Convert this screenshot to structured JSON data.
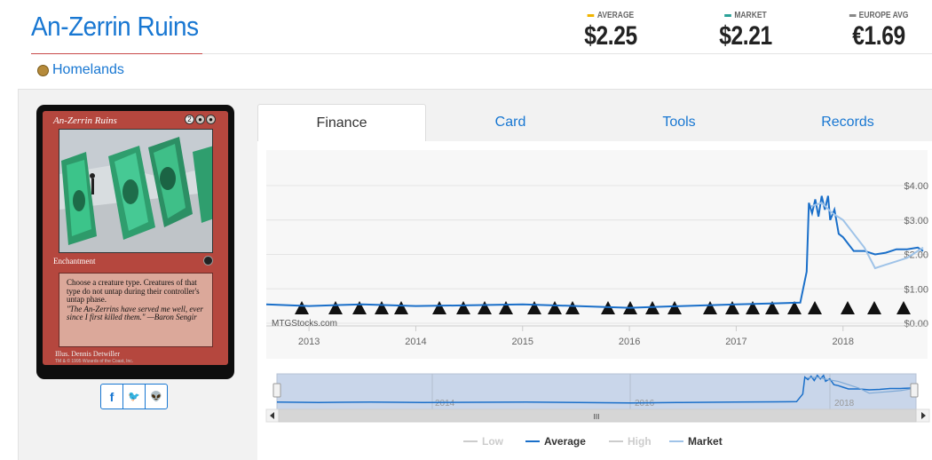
{
  "card": {
    "title": "An-Zerrin Ruins",
    "set_name": "Homelands",
    "name_on_card": "An-Zerrin Ruins",
    "mana_cost": [
      "2",
      "",
      ""
    ],
    "type_line": "Enchantment",
    "rules_text": "Choose a creature type. Creatures of that type do not untap during their controller's untap phase.",
    "flavor_text": "\"The An-Zerrins have served me well, ever since I first killed them.\" —Baron Sengir",
    "artist": "Illus. Dennis Detwiller",
    "copyright": "TM & © 1995 Wizards of the Coast, Inc."
  },
  "prices": [
    {
      "label": "AVERAGE",
      "value": "$2.25",
      "color": "#f0b400"
    },
    {
      "label": "MARKET",
      "value": "$2.21",
      "color": "#2aa198"
    },
    {
      "label": "EUROPE AVG",
      "value": "€1.69",
      "color": "#888888"
    }
  ],
  "share": [
    {
      "icon": "facebook-icon",
      "glyph": "f"
    },
    {
      "icon": "twitter-icon",
      "glyph": "🐦"
    },
    {
      "icon": "reddit-icon",
      "glyph": "👽"
    }
  ],
  "tabs": [
    {
      "label": "Finance",
      "active": true
    },
    {
      "label": "Card",
      "active": false
    },
    {
      "label": "Tools",
      "active": false
    },
    {
      "label": "Records",
      "active": false
    }
  ],
  "chart_data": {
    "type": "line",
    "watermark": "MTGStocks.com",
    "y_ticks": [
      "$0.00",
      "$1.00",
      "$2.00",
      "$3.00",
      "$4.00"
    ],
    "ylim": [
      0,
      4
    ],
    "x_ticks": [
      "2013",
      "2014",
      "2015",
      "2016",
      "2017",
      "2018"
    ],
    "xlim": [
      2012.6,
      2018.75
    ],
    "series": [
      {
        "name": "Average",
        "color": "#1a6fc9",
        "x": [
          2012.6,
          2013.0,
          2013.5,
          2014.0,
          2014.5,
          2015.0,
          2015.5,
          2016.0,
          2016.5,
          2017.0,
          2017.4,
          2017.6,
          2017.66,
          2017.68,
          2017.71,
          2017.74,
          2017.77,
          2017.8,
          2017.83,
          2017.86,
          2017.88,
          2017.92,
          2017.96,
          2018.0,
          2018.05,
          2018.1,
          2018.2,
          2018.3,
          2018.4,
          2018.5,
          2018.6,
          2018.7,
          2018.75
        ],
        "values": [
          0.55,
          0.5,
          0.55,
          0.5,
          0.52,
          0.55,
          0.5,
          0.45,
          0.5,
          0.55,
          0.58,
          0.6,
          1.5,
          3.5,
          3.2,
          3.6,
          3.1,
          3.7,
          3.3,
          3.7,
          3.0,
          3.3,
          2.6,
          2.5,
          2.3,
          2.1,
          2.1,
          2.0,
          2.05,
          2.15,
          2.15,
          2.2,
          2.1
        ]
      },
      {
        "name": "Market",
        "color": "#9fc3e8",
        "x": [
          2017.7,
          2017.8,
          2017.9,
          2018.0,
          2018.1,
          2018.2,
          2018.3,
          2018.4,
          2018.5,
          2018.6,
          2018.7,
          2018.75
        ],
        "values": [
          3.4,
          3.5,
          3.2,
          3.0,
          2.6,
          2.2,
          1.6,
          1.7,
          1.8,
          1.9,
          2.1,
          2.2
        ]
      }
    ],
    "navigator": {
      "labels": [
        "2014",
        "2016",
        "2018"
      ],
      "scroll_glyph": "III"
    },
    "legend": [
      {
        "name": "Low",
        "color": "#cccccc",
        "active": false
      },
      {
        "name": "Average",
        "color": "#1a6fc9",
        "active": true
      },
      {
        "name": "High",
        "color": "#cccccc",
        "active": false
      },
      {
        "name": "Market",
        "color": "#9fc3e8",
        "active": true
      }
    ]
  }
}
